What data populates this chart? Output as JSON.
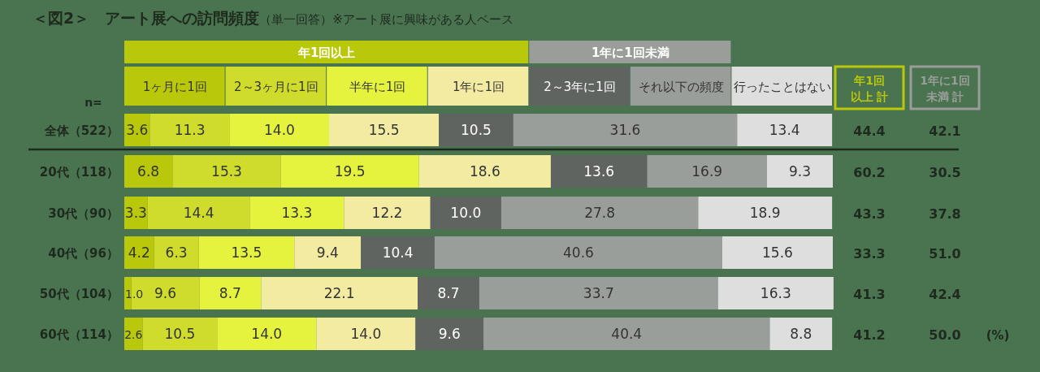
{
  "chart_data": {
    "type": "bar",
    "orientation": "horizontal",
    "stacked": true,
    "title": "＜図2＞　アート展への訪問頻度",
    "subtitle": "（単一回答）※アート展に興味がある人ベース",
    "categories": [
      "全体（522）",
      "20代（118）",
      "30代（90）",
      "40代（96）",
      "50代（104）",
      "60代（114）"
    ],
    "series": [
      {
        "name": "1ヶ月に1回",
        "color": "#b9c80a",
        "values": [
          3.6,
          6.8,
          3.3,
          4.2,
          1.0,
          2.6
        ],
        "value_labels": [
          "3.6",
          "6.8",
          "3.3",
          "4.2",
          "1.0",
          "2.6"
        ]
      },
      {
        "name": "2～3ヶ月に1回",
        "color": "#cfdc2c",
        "values": [
          11.3,
          15.3,
          14.4,
          6.3,
          9.6,
          10.5
        ],
        "value_labels": [
          "11.3",
          "15.3",
          "14.4",
          "6.3",
          "9.6",
          "10.5"
        ]
      },
      {
        "name": "半年に1回",
        "color": "#e6f33e",
        "values": [
          14.0,
          19.5,
          13.3,
          13.5,
          8.7,
          14.0
        ],
        "value_labels": [
          "14.0",
          "19.5",
          "13.3",
          "13.5",
          "8.7",
          "14.0"
        ]
      },
      {
        "name": "1年に1回",
        "color": "#f3eba2",
        "values": [
          15.5,
          18.6,
          12.2,
          9.4,
          22.1,
          14.0
        ],
        "value_labels": [
          "15.5",
          "18.6",
          "12.2",
          "9.4",
          "22.1",
          "14.0"
        ]
      },
      {
        "name": "2～3年に1回",
        "color": "#5f6461",
        "values": [
          10.5,
          13.6,
          10.0,
          10.4,
          8.7,
          9.6
        ],
        "value_labels": [
          "10.5",
          "13.6",
          "10.0",
          "10.4",
          "8.7",
          "9.6"
        ]
      },
      {
        "name": "それ以下の頻度",
        "color": "#9a9e9a",
        "values": [
          31.6,
          16.9,
          27.8,
          40.6,
          33.7,
          40.4
        ],
        "value_labels": [
          "31.6",
          "16.9",
          "27.8",
          "40.6",
          "33.7",
          "40.4"
        ]
      },
      {
        "name": "行ったことはない",
        "color": "#dedede",
        "values": [
          13.4,
          9.3,
          18.9,
          15.6,
          16.3,
          8.8
        ],
        "value_labels": [
          "13.4",
          "9.3",
          "18.9",
          "15.6",
          "16.3",
          "8.8"
        ]
      }
    ],
    "xlim": [
      0,
      100
    ],
    "tick_labels": "y",
    "legend": "top",
    "annotations": [
      "年1回以上",
      "1年に1回未満",
      "年1回",
      "以上 計",
      "1年に1回",
      "未満 計",
      "n=",
      "44.4",
      "42.1",
      "60.2",
      "30.5",
      "43.3",
      "37.8",
      "33.3",
      "51.0",
      "41.3",
      "42.4",
      "41.2",
      "50.0",
      "(%)"
    ]
  }
}
